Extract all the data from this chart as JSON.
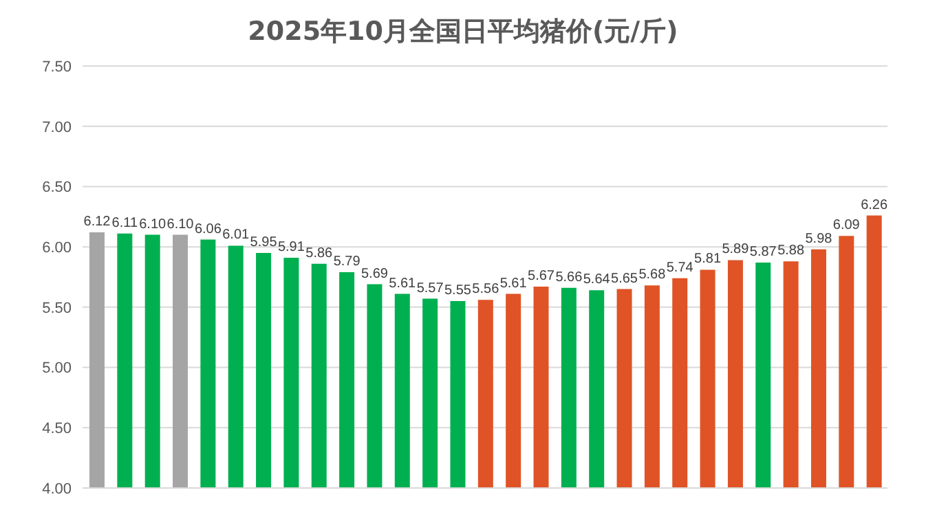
{
  "chart_data": {
    "type": "bar",
    "title": "2025年10月全国日平均猪价(元/斤)",
    "categories": [
      null,
      null,
      null,
      null,
      null,
      null,
      null,
      null,
      null,
      null,
      null,
      null,
      null,
      null,
      null,
      null,
      null,
      null,
      null,
      null,
      null,
      null,
      null,
      null,
      null,
      null,
      null,
      null,
      null
    ],
    "values": [
      6.12,
      6.11,
      6.1,
      6.1,
      6.06,
      6.01,
      5.95,
      5.91,
      5.86,
      5.79,
      5.69,
      5.61,
      5.57,
      5.55,
      5.56,
      5.61,
      5.67,
      5.66,
      5.64,
      5.65,
      5.68,
      5.74,
      5.81,
      5.89,
      5.87,
      5.88,
      5.98,
      6.09,
      6.26
    ],
    "value_labels": [
      "6.12",
      "6.11",
      "6.10",
      "6.10",
      "6.06",
      "6.01",
      "5.95",
      "5.91",
      "5.86",
      "5.79",
      "5.69",
      "5.61",
      "5.57",
      "5.55",
      "5.56",
      "5.61",
      "5.67",
      "5.66",
      "5.64",
      "5.65",
      "5.68",
      "5.74",
      "5.81",
      "5.89",
      "5.87",
      "5.88",
      "5.98",
      "6.09",
      "6.26"
    ],
    "colors": [
      "#a5a5a5",
      "#00b050",
      "#00b050",
      "#a5a5a5",
      "#00b050",
      "#00b050",
      "#00b050",
      "#00b050",
      "#00b050",
      "#00b050",
      "#00b050",
      "#00b050",
      "#00b050",
      "#00b050",
      "#e05326",
      "#e05326",
      "#e05326",
      "#00b050",
      "#00b050",
      "#e05326",
      "#e05326",
      "#e05326",
      "#e05326",
      "#e05326",
      "#00b050",
      "#e05326",
      "#e05326",
      "#e05326",
      "#e05326"
    ],
    "ylim": [
      4.0,
      7.5
    ],
    "yticks": [
      {
        "value": 4,
        "label": "4.00"
      },
      {
        "value": 4.5,
        "label": "4.50"
      },
      {
        "value": 5,
        "label": "5.00"
      },
      {
        "value": 5.5,
        "label": "5.50"
      },
      {
        "value": 6,
        "label": "6.00"
      },
      {
        "value": 6.5,
        "label": "6.50"
      },
      {
        "value": 7,
        "label": "7.00"
      },
      {
        "value": 7.5,
        "label": "7.50"
      }
    ],
    "grid": "y"
  }
}
